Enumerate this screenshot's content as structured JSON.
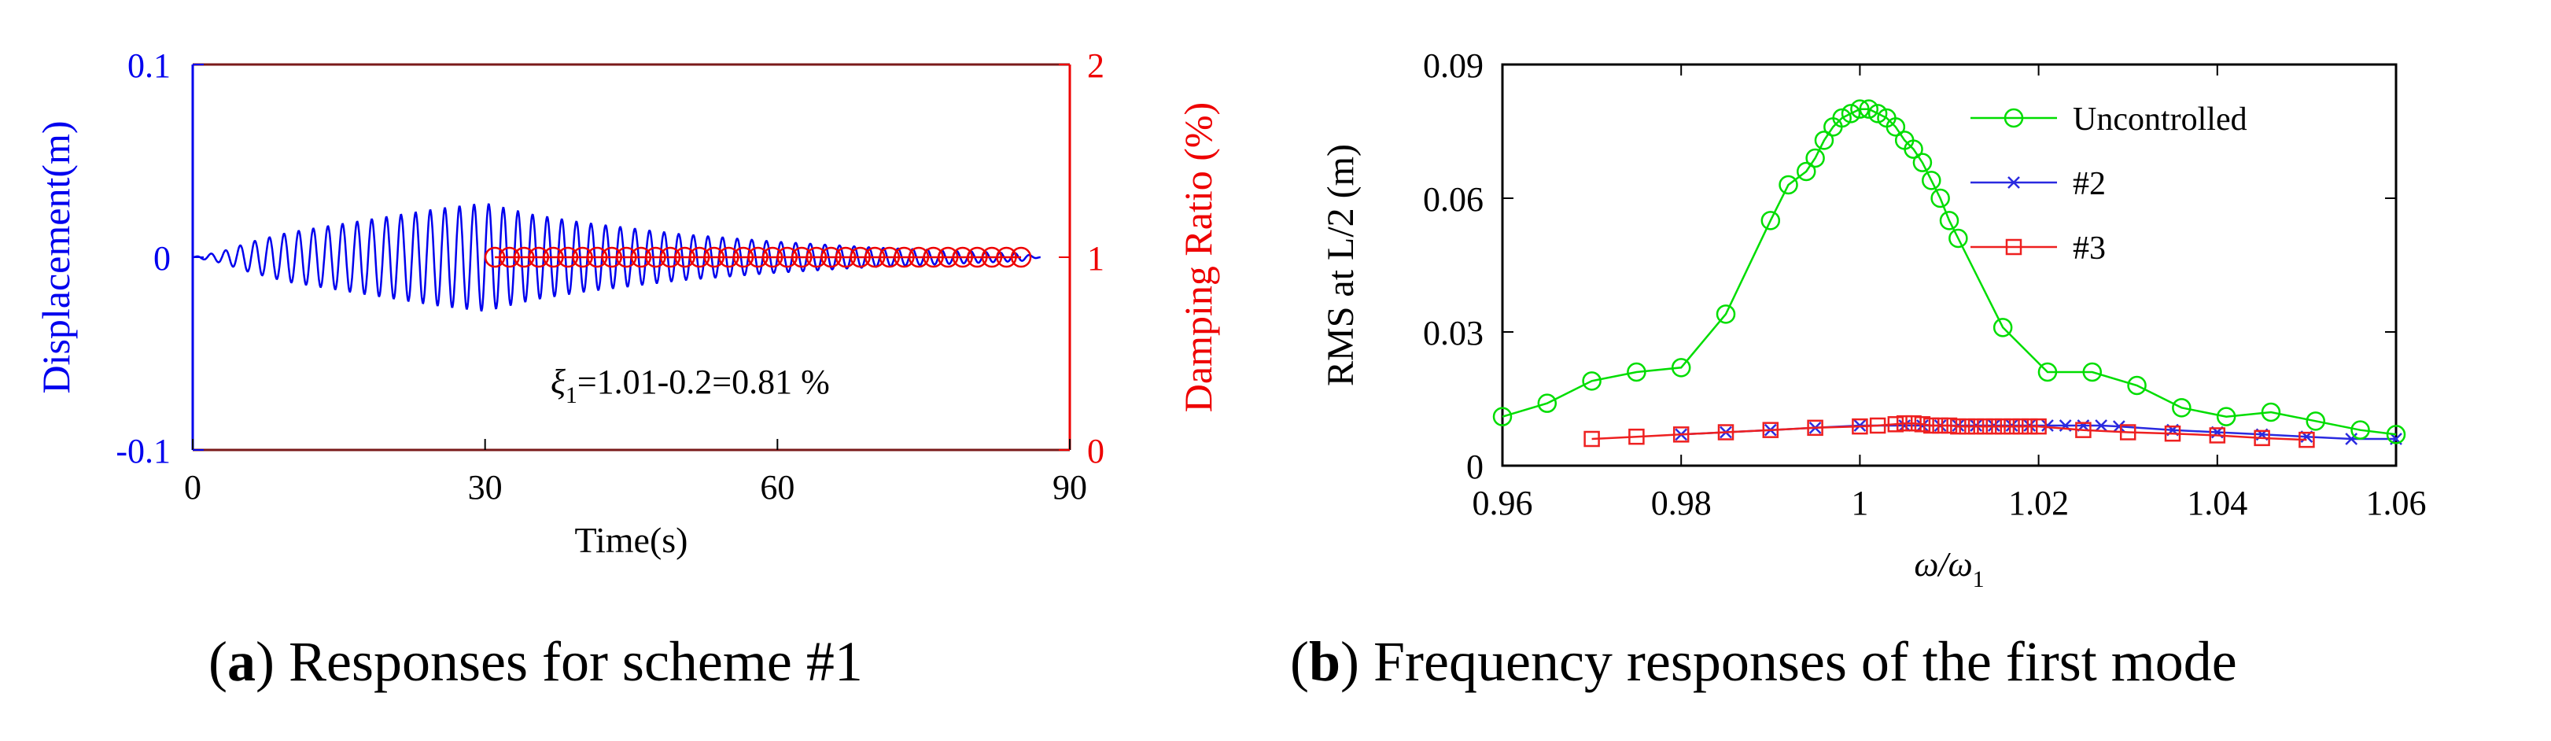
{
  "chart_data": [
    {
      "type": "line",
      "panel_letter": "a",
      "title": "Responses for scheme #1",
      "xlabel": "Time(s)",
      "ylabel_left": "Displacement(m)",
      "ylabel_right": "Damping Ratio (%)",
      "xlim": [
        0,
        90
      ],
      "ylim_left": [
        -0.1,
        0.1
      ],
      "ylim_right": [
        0,
        2
      ],
      "xticks": [
        "0",
        "30",
        "60",
        "90"
      ],
      "yticks_left": [
        "-0.1",
        "0",
        "0.1"
      ],
      "yticks_right": [
        "0",
        "1",
        "2"
      ],
      "annotation": "ξ1=1.01-0.2=0.81 %",
      "colors": {
        "left_axis": "#0000ee",
        "right_axis": "#ee0000",
        "frame_top": "#7a1a1a"
      },
      "series": [
        {
          "name": "Displacement",
          "axis": "left",
          "color": "#0000ee",
          "marker": "none",
          "period_s": 1.5,
          "envelope_t": [
            0,
            3,
            6,
            10,
            15,
            20,
            25,
            30,
            35,
            40,
            50,
            60,
            70,
            80,
            85,
            87
          ],
          "envelope_amp": [
            0.0,
            0.003,
            0.008,
            0.013,
            0.017,
            0.021,
            0.025,
            0.028,
            0.022,
            0.018,
            0.012,
            0.008,
            0.005,
            0.003,
            0.002,
            0.0
          ]
        },
        {
          "name": "Damping Ratio",
          "axis": "right",
          "color": "#ee0000",
          "marker": "circle",
          "x": [
            31,
            32.5,
            34,
            35.5,
            37,
            38.5,
            40,
            41.5,
            43,
            44.5,
            46,
            47.5,
            49,
            50.5,
            52,
            53.5,
            55,
            56.5,
            58,
            59.5,
            61,
            62.5,
            64,
            65.5,
            67,
            68.5,
            70,
            71.5,
            73,
            74.5,
            76,
            77.5,
            79,
            80.5,
            82,
            83.5,
            85
          ],
          "y": [
            1,
            1,
            1,
            1,
            1,
            1,
            1,
            1,
            1,
            1,
            1,
            1,
            1,
            1,
            1,
            1,
            1,
            1,
            1,
            1,
            1,
            1,
            1,
            1,
            1,
            1,
            1,
            1,
            1,
            1,
            1,
            1,
            1,
            1,
            1,
            1,
            1
          ]
        }
      ]
    },
    {
      "type": "line",
      "panel_letter": "b",
      "title": "Frequency responses of the first mode",
      "xlabel": "ω/ω1",
      "ylabel": "RMS at L/2 (m)",
      "xlim": [
        0.96,
        1.06
      ],
      "ylim": [
        0,
        0.09
      ],
      "xticks": [
        "0.96",
        "0.98",
        "1",
        "1.02",
        "1.04",
        "1.06"
      ],
      "yticks": [
        "0",
        "0.03",
        "0.06",
        "0.09"
      ],
      "legend_position": "top-right",
      "series": [
        {
          "name": "Uncontrolled",
          "color": "#00dd00",
          "marker": "circle",
          "x": [
            0.96,
            0.965,
            0.97,
            0.975,
            0.98,
            0.985,
            0.99,
            0.992,
            0.994,
            0.995,
            0.996,
            0.997,
            0.998,
            0.999,
            1.0,
            1.001,
            1.002,
            1.003,
            1.004,
            1.005,
            1.006,
            1.007,
            1.008,
            1.009,
            1.01,
            1.011,
            1.016,
            1.021,
            1.026,
            1.031,
            1.036,
            1.041,
            1.046,
            1.051,
            1.056,
            1.06
          ],
          "y": [
            0.011,
            0.014,
            0.019,
            0.021,
            0.022,
            0.034,
            0.055,
            0.063,
            0.066,
            0.069,
            0.073,
            0.076,
            0.078,
            0.079,
            0.08,
            0.08,
            0.079,
            0.078,
            0.076,
            0.073,
            0.071,
            0.068,
            0.064,
            0.06,
            0.055,
            0.051,
            0.031,
            0.021,
            0.021,
            0.018,
            0.013,
            0.011,
            0.012,
            0.01,
            0.008,
            0.007
          ]
        },
        {
          "name": "#2",
          "color": "#2a2ae0",
          "marker": "x",
          "x": [
            0.98,
            0.985,
            0.99,
            0.995,
            1.0,
            1.005,
            1.007,
            1.009,
            1.011,
            1.013,
            1.015,
            1.017,
            1.019,
            1.021,
            1.023,
            1.025,
            1.027,
            1.029,
            1.035,
            1.04,
            1.045,
            1.05,
            1.055,
            1.06
          ],
          "y": [
            0.007,
            0.0075,
            0.008,
            0.0085,
            0.009,
            0.009,
            0.009,
            0.009,
            0.009,
            0.009,
            0.009,
            0.009,
            0.009,
            0.009,
            0.009,
            0.009,
            0.009,
            0.0088,
            0.008,
            0.0075,
            0.007,
            0.0065,
            0.006,
            0.006
          ]
        },
        {
          "name": "#3",
          "color": "#ee2020",
          "marker": "square",
          "x": [
            0.97,
            0.975,
            0.98,
            0.985,
            0.99,
            0.995,
            1.0,
            1.002,
            1.004,
            1.005,
            1.006,
            1.007,
            1.008,
            1.009,
            1.01,
            1.011,
            1.012,
            1.013,
            1.014,
            1.015,
            1.016,
            1.017,
            1.018,
            1.019,
            1.02,
            1.025,
            1.03,
            1.035,
            1.04,
            1.045,
            1.05
          ],
          "y": [
            0.006,
            0.0065,
            0.007,
            0.0075,
            0.008,
            0.0085,
            0.0088,
            0.009,
            0.0093,
            0.0095,
            0.0095,
            0.0093,
            0.009,
            0.009,
            0.009,
            0.0088,
            0.0088,
            0.0088,
            0.0088,
            0.0088,
            0.0088,
            0.0088,
            0.0088,
            0.0088,
            0.0088,
            0.008,
            0.0075,
            0.0072,
            0.0068,
            0.0062,
            0.0058
          ]
        }
      ]
    }
  ]
}
